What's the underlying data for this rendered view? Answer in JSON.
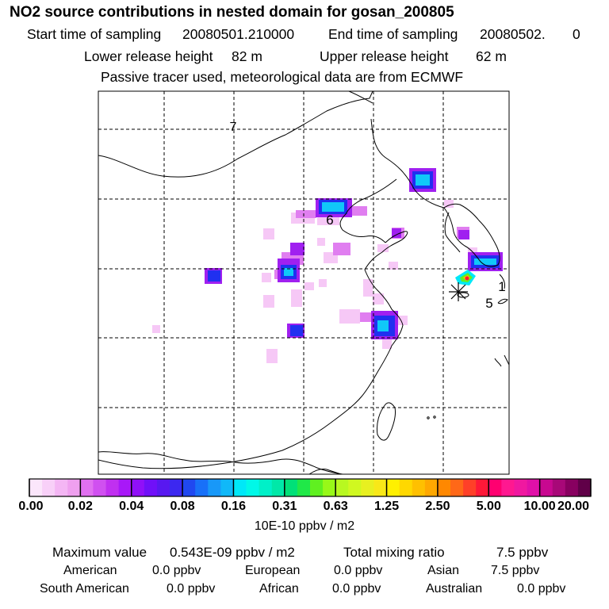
{
  "header": {
    "title": "NO2 source contributions in nested domain for gosan_200805",
    "start_label": "Start time of sampling",
    "start_value": "20080501.210000",
    "end_label": "End time of sampling",
    "end_value": "20080502.",
    "end_extra": "0",
    "lower_label": "Lower release height",
    "lower_value": "82 m",
    "upper_label": "Upper release height",
    "upper_value": "62 m",
    "tracer_note": "Passive tracer used, meteorological data are from ECMWF"
  },
  "map": {
    "labels": [
      "7",
      "6",
      "5",
      "1"
    ],
    "colors": {
      "coast": "#000000",
      "grid": "#000000"
    }
  },
  "colorbar": {
    "ticks": [
      "0.00",
      "0.02",
      "0.04",
      "0.08",
      "0.16",
      "0.31",
      "0.63",
      "1.25",
      "2.50",
      "5.00",
      "10.00",
      "20.00"
    ],
    "unit": "10E-10 ppbv / m2",
    "colors": [
      [
        "#fbe6fb",
        "#f8d0f8",
        "#f4b6f4",
        "#efa0ef"
      ],
      [
        "#e070f0",
        "#d050f0",
        "#c030f0",
        "#a818f8"
      ],
      [
        "#9010f8",
        "#7010f8",
        "#5818f0",
        "#3c28f0"
      ],
      [
        "#2048f0",
        "#1870f8",
        "#1898f8",
        "#10b8f8"
      ],
      [
        "#00e8f8",
        "#00f8e8",
        "#00f0c8",
        "#00e8a8"
      ],
      [
        "#00e078",
        "#20e848",
        "#60f020",
        "#98f818"
      ],
      [
        "#b8f820",
        "#d0f820",
        "#e8f020",
        "#f8e818"
      ],
      [
        "#fff000",
        "#ffd800",
        "#ffc000",
        "#ffa800"
      ],
      [
        "#ff8800",
        "#ff6818",
        "#ff4028",
        "#ff1838"
      ],
      [
        "#ff0070",
        "#ff1890",
        "#f018a0",
        "#e010a8"
      ],
      [
        "#c80890",
        "#a80878",
        "#880060",
        "#600048"
      ]
    ]
  },
  "summary": {
    "max_label": "Maximum value",
    "max_value": "0.543E-09 ppbv / m2",
    "total_label": "Total mixing ratio",
    "total_value": "7.5 ppbv",
    "regions": [
      {
        "name": "American",
        "value": "0.0 ppbv"
      },
      {
        "name": "European",
        "value": "0.0 ppbv"
      },
      {
        "name": "Asian",
        "value": "7.5 ppbv"
      },
      {
        "name": "South American",
        "value": "0.0 ppbv"
      },
      {
        "name": "African",
        "value": "0.0 ppbv"
      },
      {
        "name": "Australian",
        "value": "0.0 ppbv"
      }
    ]
  }
}
